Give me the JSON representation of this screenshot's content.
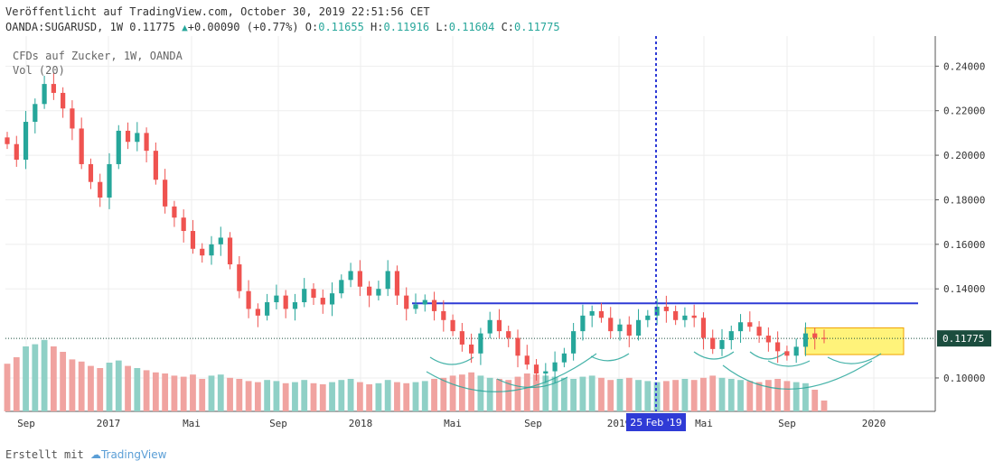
{
  "header": {
    "published": "Veröffentlicht auf TradingView.com, October 30, 2019 22:51:56 CET",
    "symbol": "OANDA:SUGARUSD, 1W",
    "last": "0.11775",
    "change": "+0.00090 (+0.77%)",
    "o_label": "O:",
    "o_value": "0.11655",
    "h_label": "H:",
    "h_value": "0.11916",
    "l_label": "L:",
    "l_value": "0.11604",
    "c_label": "C:",
    "c_value": "0.11775"
  },
  "legend": {
    "title": "CFDs auf Zucker, 1W, OANDA",
    "volume": "Vol (20)"
  },
  "footer": {
    "created_with": "Erstellt mit",
    "brand": "TradingView"
  },
  "colors": {
    "up": "#26a69a",
    "down": "#ef5350",
    "up_volume": "#8fd0c6",
    "down_volume": "#f0a3a0",
    "line": "#2f3bd6",
    "crosshair": "#2f3bd6",
    "price_label_bg": "#1b4d3e",
    "highlight": "#fff37a",
    "arc": "#26a69a"
  },
  "chart_data": {
    "type": "candlestick",
    "title": "CFDs auf Zucker, 1W, OANDA",
    "x_ticks": [
      "Sep",
      "2017",
      "Mai",
      "Sep",
      "2018",
      "Mai",
      "Sep",
      "2019",
      "Mai",
      "Sep",
      "2020"
    ],
    "y_ticks": [
      "0.24000",
      "0.22000",
      "0.20000",
      "0.18000",
      "0.16000",
      "0.14000",
      "0.10000"
    ],
    "ylim": [
      0.085,
      0.2535
    ],
    "last_price": 0.11775,
    "last_price_label": "0.11775",
    "crosshair_label": "25 Feb '19",
    "resistance_level": 0.1335,
    "highlight_box": [
      0.1105,
      0.1225
    ],
    "grid": true,
    "volume_indicator": "Vol (20)",
    "price_path": [
      0.205,
      0.198,
      0.215,
      0.223,
      0.232,
      0.228,
      0.221,
      0.212,
      0.196,
      0.188,
      0.181,
      0.196,
      0.211,
      0.206,
      0.21,
      0.202,
      0.189,
      0.177,
      0.172,
      0.166,
      0.158,
      0.155,
      0.16,
      0.163,
      0.151,
      0.139,
      0.131,
      0.128,
      0.134,
      0.137,
      0.131,
      0.134,
      0.14,
      0.136,
      0.133,
      0.138,
      0.144,
      0.148,
      0.141,
      0.137,
      0.14,
      0.148,
      0.137,
      0.131,
      0.133,
      0.135,
      0.13,
      0.126,
      0.121,
      0.115,
      0.111,
      0.12,
      0.126,
      0.121,
      0.118,
      0.11,
      0.106,
      0.102,
      0.103,
      0.107,
      0.111,
      0.121,
      0.128,
      0.13,
      0.127,
      0.121,
      0.124,
      0.119,
      0.126,
      0.128,
      0.132,
      0.13,
      0.126,
      0.128,
      0.127,
      0.118,
      0.113,
      0.117,
      0.121,
      0.125,
      0.123,
      0.119,
      0.116,
      0.112,
      0.11,
      0.114,
      0.12,
      0.118,
      0.1178
    ],
    "volume_path": [
      0.44,
      0.5,
      0.6,
      0.62,
      0.66,
      0.6,
      0.55,
      0.48,
      0.46,
      0.42,
      0.4,
      0.45,
      0.47,
      0.42,
      0.4,
      0.38,
      0.36,
      0.35,
      0.33,
      0.32,
      0.34,
      0.3,
      0.33,
      0.34,
      0.31,
      0.3,
      0.28,
      0.27,
      0.29,
      0.28,
      0.26,
      0.27,
      0.29,
      0.26,
      0.25,
      0.27,
      0.29,
      0.3,
      0.27,
      0.25,
      0.26,
      0.29,
      0.27,
      0.26,
      0.27,
      0.28,
      0.3,
      0.31,
      0.33,
      0.34,
      0.36,
      0.33,
      0.31,
      0.3,
      0.29,
      0.32,
      0.35,
      0.34,
      0.33,
      0.32,
      0.31,
      0.3,
      0.32,
      0.33,
      0.31,
      0.29,
      0.3,
      0.31,
      0.29,
      0.28,
      0.27,
      0.28,
      0.29,
      0.3,
      0.29,
      0.31,
      0.33,
      0.31,
      0.3,
      0.29,
      0.28,
      0.27,
      0.29,
      0.3,
      0.28,
      0.27,
      0.26,
      0.2,
      0.1
    ]
  }
}
